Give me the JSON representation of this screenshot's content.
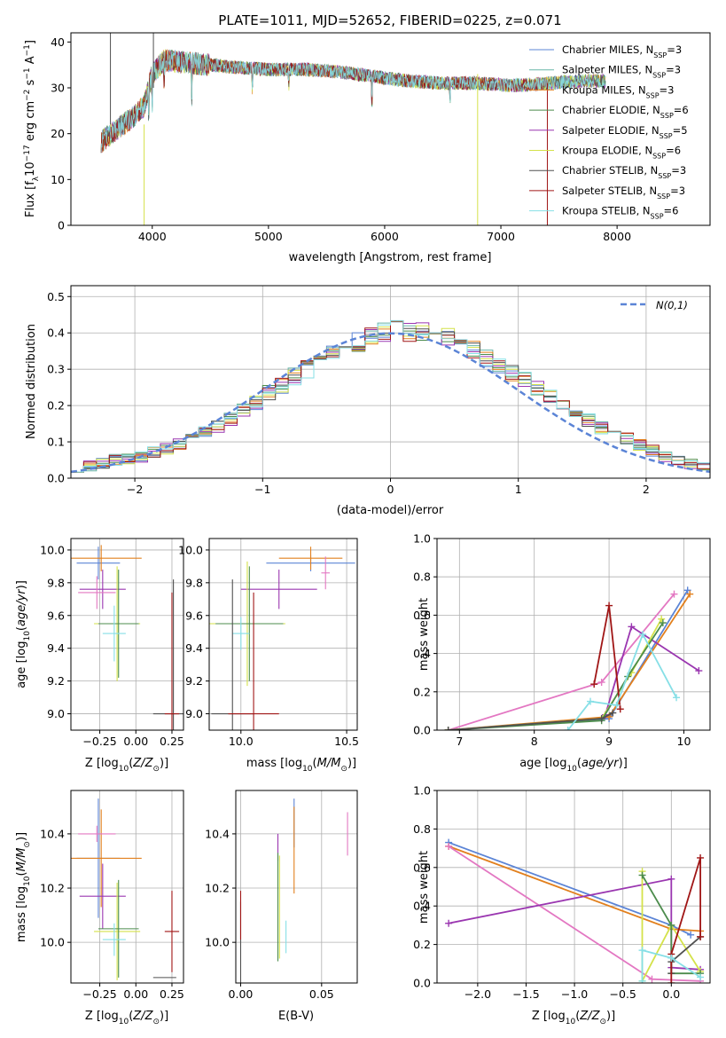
{
  "chart_data": [
    {
      "id": "spectrum",
      "type": "line",
      "title": "PLATE=1011, MJD=52652, FIBERID=0225, z=0.071",
      "xlabel": "wavelength [Angstrom, rest frame]",
      "ylabel": "Flux [fλ10⁻¹⁷ erg cm⁻² s⁻¹ A⁻¹]",
      "xlim": [
        3300,
        8800
      ],
      "ylim": [
        0,
        42
      ],
      "xticks": [
        4000,
        5000,
        6000,
        7000,
        8000
      ],
      "yticks": [
        0,
        10,
        20,
        30,
        40
      ],
      "legend_position": "top-right",
      "continuum": {
        "x": [
          3550,
          3700,
          3850,
          3930,
          4000,
          4100,
          4300,
          4500,
          4700,
          5000,
          5300,
          5600,
          5900,
          6200,
          6500,
          6800,
          7100,
          7400,
          7700,
          7900
        ],
        "y": [
          18,
          21,
          24,
          26,
          33,
          36,
          35.5,
          35,
          34.5,
          34,
          34,
          33.5,
          32.5,
          31.5,
          31,
          31,
          30.5,
          31,
          31.5,
          31.5
        ]
      },
      "series": [
        {
          "name": "Chabrier MILES, N_SSP=3",
          "legend": "Chabrier MILES, N",
          "sub": "SSP",
          "suffix": "=3",
          "color": "#5b84d6"
        },
        {
          "name": "Salpeter MILES, N_SSP=3",
          "legend": "Salpeter MILES, N",
          "sub": "SSP",
          "suffix": "=3",
          "color": "#68b5a8"
        },
        {
          "name": "Kroupa MILES, N_SSP=3",
          "legend": "Kroupa MILES, N",
          "sub": "SSP",
          "suffix": "=3",
          "color": "#e2801e"
        },
        {
          "name": "Chabrier ELODIE, N_SSP=6",
          "legend": "Chabrier ELODIE, N",
          "sub": "SSP",
          "suffix": "=6",
          "color": "#4c8c4c"
        },
        {
          "name": "Salpeter ELODIE, N_SSP=5",
          "legend": "Salpeter ELODIE, N",
          "sub": "SSP",
          "suffix": "=5",
          "color": "#9a36b0"
        },
        {
          "name": "Kroupa ELODIE, N_SSP=6",
          "legend": "Kroupa ELODIE, N",
          "sub": "SSP",
          "suffix": "=6",
          "color": "#d4e24a"
        },
        {
          "name": "Chabrier STELIB, N_SSP=3",
          "legend": "Chabrier STELIB, N",
          "sub": "SSP",
          "suffix": "=3",
          "color": "#505050"
        },
        {
          "name": "Salpeter STELIB, N_SSP=3",
          "legend": "Salpeter STELIB, N",
          "sub": "SSP",
          "suffix": "=3",
          "color": "#a01616"
        },
        {
          "name": "Kroupa STELIB, N_SSP=6",
          "legend": "Kroupa STELIB, N",
          "sub": "SSP",
          "suffix": "=6",
          "color": "#86dfe6"
        }
      ],
      "vertical_spikes": [
        {
          "x": 3930,
          "y0": 0,
          "y1": 22,
          "color": "#d4e24a"
        },
        {
          "x": 6800,
          "y0": 0,
          "y1": 33,
          "color": "#d4e24a"
        },
        {
          "x": 7400,
          "y0": 0,
          "y1": 31,
          "color": "#a01616"
        },
        {
          "x": 3640,
          "y0": 42,
          "y1": 22,
          "color": "#505050"
        },
        {
          "x": 4010,
          "y0": 42,
          "y1": 30,
          "color": "#505050"
        }
      ]
    },
    {
      "id": "residuals",
      "type": "histogram",
      "xlabel": "(data-model)/error",
      "ylabel": "Normed distribution",
      "xlim": [
        -2.5,
        2.5
      ],
      "ylim": [
        0,
        0.53
      ],
      "xticks": [
        -2,
        -1,
        0,
        1,
        2
      ],
      "yticks": [
        0,
        0.1,
        0.2,
        0.3,
        0.4,
        0.5
      ],
      "bin_width": 0.1,
      "bin_start": -2.5,
      "gaussian_label": "N(0,1)",
      "gaussian_color": "#5b84d6",
      "mean_profile": [
        0.03,
        0.035,
        0.04,
        0.05,
        0.055,
        0.06,
        0.07,
        0.08,
        0.095,
        0.11,
        0.13,
        0.145,
        0.16,
        0.185,
        0.21,
        0.235,
        0.255,
        0.28,
        0.3,
        0.32,
        0.34,
        0.36,
        0.375,
        0.39,
        0.4,
        0.41,
        0.405,
        0.4,
        0.395,
        0.385,
        0.37,
        0.355,
        0.33,
        0.31,
        0.29,
        0.27,
        0.25,
        0.225,
        0.2,
        0.18,
        0.16,
        0.14,
        0.125,
        0.11,
        0.09,
        0.075,
        0.06,
        0.05,
        0.04,
        0.03
      ]
    },
    {
      "id": "age-vs-Z",
      "type": "errorbar",
      "xlabel": "Z [log10(Z/Z⊙)]",
      "ylabel": "age [log10(age/yr)]",
      "xlim": [
        -0.45,
        0.33
      ],
      "ylim": [
        8.9,
        10.07
      ],
      "xticks": [
        -0.25,
        0,
        0.25
      ],
      "xticklabels": [
        "−0.25",
        "0.00",
        "0.25"
      ],
      "yticks": [
        9.0,
        9.2,
        9.4,
        9.6,
        9.8,
        10.0
      ],
      "points": [
        {
          "x": -0.26,
          "xerr": 0.15,
          "y": 9.92,
          "yerr": 0.1,
          "color": "#5b84d6"
        },
        {
          "x": -0.24,
          "xerr": 0.28,
          "y": 9.95,
          "yerr": 0.08,
          "color": "#e2801e"
        },
        {
          "x": -0.23,
          "xerr": 0.16,
          "y": 9.76,
          "yerr": 0.12,
          "color": "#9a36b0"
        },
        {
          "x": -0.27,
          "xerr": 0.13,
          "y": 9.74,
          "yerr": 0.1,
          "color": "#e377c2"
        },
        {
          "x": -0.13,
          "xerr": 0.16,
          "y": 9.55,
          "yerr": 0.35,
          "color": "#d4e24a"
        },
        {
          "x": -0.12,
          "xerr": 0.14,
          "y": 9.55,
          "yerr": 0.33,
          "color": "#4c8c4c"
        },
        {
          "x": -0.15,
          "xerr": 0.08,
          "y": 9.49,
          "yerr": 0.17,
          "color": "#86dfe6"
        },
        {
          "x": 0.26,
          "xerr": 0.14,
          "y": 9.0,
          "yerr": 0.82,
          "color": "#505050"
        },
        {
          "x": 0.25,
          "xerr": 0.05,
          "y": 9.0,
          "yerr": 0.74,
          "color": "#a01616"
        }
      ]
    },
    {
      "id": "age-vs-mass",
      "type": "errorbar",
      "xlabel": "mass [log10(M/M⊙)]",
      "ylabel": "",
      "xlim": [
        9.85,
        10.55
      ],
      "ylim": [
        8.9,
        10.07
      ],
      "xticks": [
        10.0,
        10.5
      ],
      "yticks": [
        9.0,
        9.2,
        9.4,
        9.6,
        9.8,
        10.0
      ],
      "points": [
        {
          "x": 10.33,
          "xerr": 0.21,
          "y": 9.92,
          "yerr": 0.05,
          "color": "#5b84d6"
        },
        {
          "x": 10.33,
          "xerr": 0.15,
          "y": 9.95,
          "yerr": 0.07,
          "color": "#e2801e"
        },
        {
          "x": 10.18,
          "xerr": 0.18,
          "y": 9.76,
          "yerr": 0.12,
          "color": "#9a36b0"
        },
        {
          "x": 10.4,
          "xerr": 0.02,
          "y": 9.86,
          "yerr": 0.1,
          "color": "#e377c2"
        },
        {
          "x": 10.03,
          "xerr": 0.18,
          "y": 9.55,
          "yerr": 0.38,
          "color": "#d4e24a"
        },
        {
          "x": 10.04,
          "xerr": 0.16,
          "y": 9.55,
          "yerr": 0.35,
          "color": "#4c8c4c"
        },
        {
          "x": 10.0,
          "xerr": 0.04,
          "y": 9.49,
          "yerr": 0.1,
          "color": "#86dfe6"
        },
        {
          "x": 9.96,
          "xerr": 0.1,
          "y": 9.0,
          "yerr": 0.82,
          "color": "#505050"
        },
        {
          "x": 10.06,
          "xerr": 0.12,
          "y": 9.0,
          "yerr": 0.74,
          "color": "#a01616"
        }
      ]
    },
    {
      "id": "massweight-vs-age",
      "type": "line",
      "xlabel": "age [log10(age/yr)]",
      "ylabel": "mass weight",
      "xlim": [
        6.7,
        10.35
      ],
      "ylim": [
        0,
        1.0
      ],
      "xticks": [
        7,
        8,
        9,
        10
      ],
      "yticks": [
        0,
        0.2,
        0.4,
        0.6,
        0.8,
        1.0
      ],
      "series": [
        {
          "color": "#5b84d6",
          "x": [
            6.85,
            9.0,
            10.05
          ],
          "y": [
            0.0,
            0.06,
            0.73
          ]
        },
        {
          "color": "#e2801e",
          "x": [
            6.85,
            9.0,
            10.08
          ],
          "y": [
            0.0,
            0.07,
            0.71
          ]
        },
        {
          "color": "#e377c2",
          "x": [
            6.85,
            8.9,
            9.87
          ],
          "y": [
            0.0,
            0.25,
            0.71
          ]
        },
        {
          "color": "#9a36b0",
          "x": [
            8.95,
            9.3,
            10.2
          ],
          "y": [
            0.08,
            0.54,
            0.31
          ]
        },
        {
          "color": "#d4e24a",
          "x": [
            6.85,
            8.9,
            9.3,
            9.7
          ],
          "y": [
            0.0,
            0.06,
            0.3,
            0.58
          ]
        },
        {
          "color": "#4c8c4c",
          "x": [
            6.85,
            8.9,
            9.25,
            9.72
          ],
          "y": [
            0.0,
            0.05,
            0.28,
            0.56
          ]
        },
        {
          "color": "#505050",
          "x": [
            6.85,
            8.9,
            9.05
          ],
          "y": [
            0.0,
            0.06,
            0.09
          ]
        },
        {
          "color": "#a01616",
          "x": [
            8.8,
            9.0,
            9.15
          ],
          "y": [
            0.24,
            0.65,
            0.11
          ]
        },
        {
          "color": "#86dfe6",
          "x": [
            8.45,
            8.75,
            9.1,
            9.45,
            9.9
          ],
          "y": [
            0.0,
            0.15,
            0.13,
            0.5,
            0.17
          ]
        }
      ]
    },
    {
      "id": "mass-vs-Z",
      "type": "errorbar",
      "xlabel": "Z [log10(Z/Z⊙)]",
      "ylabel": "mass [log10(M/M⊙)]",
      "xlim": [
        -0.45,
        0.33
      ],
      "ylim": [
        9.85,
        10.56
      ],
      "xticks": [
        -0.25,
        0,
        0.25
      ],
      "xticklabels": [
        "−0.25",
        "0.00",
        "0.25"
      ],
      "yticks": [
        10.0,
        10.2,
        10.4
      ],
      "points": [
        {
          "x": -0.26,
          "xerr": 0.15,
          "y": 10.31,
          "yerr": 0.22,
          "color": "#5b84d6"
        },
        {
          "x": -0.24,
          "xerr": 0.28,
          "y": 10.31,
          "yerr": 0.18,
          "color": "#e2801e"
        },
        {
          "x": -0.23,
          "xerr": 0.16,
          "y": 10.17,
          "yerr": 0.12,
          "color": "#9a36b0"
        },
        {
          "x": -0.27,
          "xerr": 0.13,
          "y": 10.4,
          "yerr": 0.03,
          "color": "#e377c2"
        },
        {
          "x": -0.13,
          "xerr": 0.16,
          "y": 10.04,
          "yerr": 0.18,
          "color": "#d4e24a"
        },
        {
          "x": -0.12,
          "xerr": 0.14,
          "y": 10.05,
          "yerr": 0.18,
          "color": "#4c8c4c"
        },
        {
          "x": -0.15,
          "xerr": 0.08,
          "y": 10.01,
          "yerr": 0.06,
          "color": "#86dfe6"
        },
        {
          "x": 0.2,
          "xerr": 0.08,
          "y": 9.87,
          "yerr": 0.0,
          "color": "#505050"
        },
        {
          "x": 0.25,
          "xerr": 0.05,
          "y": 10.04,
          "yerr": 0.15,
          "color": "#a01616"
        }
      ]
    },
    {
      "id": "mass-vs-EBV",
      "type": "errorbar",
      "xlabel": "E(B-V)",
      "ylabel": "",
      "xlim": [
        -0.003,
        0.072
      ],
      "ylim": [
        9.85,
        10.56
      ],
      "xticks": [
        0.0,
        0.05
      ],
      "xticklabels": [
        "0.00",
        "0.05"
      ],
      "yticks": [
        10.0,
        10.2,
        10.4
      ],
      "points": [
        {
          "x": 0.033,
          "xerr": 0,
          "y": 10.44,
          "yerr": 0.09,
          "color": "#5b84d6"
        },
        {
          "x": 0.033,
          "xerr": 0,
          "y": 10.34,
          "yerr": 0.16,
          "color": "#e2801e"
        },
        {
          "x": 0.023,
          "xerr": 0,
          "y": 10.35,
          "yerr": 0.05,
          "color": "#9a36b0"
        },
        {
          "x": 0.066,
          "xerr": 0,
          "y": 10.4,
          "yerr": 0.08,
          "color": "#e377c2"
        },
        {
          "x": 0.024,
          "xerr": 0,
          "y": 10.13,
          "yerr": 0.19,
          "color": "#d4e24a"
        },
        {
          "x": 0.023,
          "xerr": 0,
          "y": 10.13,
          "yerr": 0.2,
          "color": "#4c8c4c"
        },
        {
          "x": 0.028,
          "xerr": 0,
          "y": 10.02,
          "yerr": 0.06,
          "color": "#86dfe6"
        },
        {
          "x": 0.0,
          "xerr": 0,
          "y": 10.0,
          "yerr": 0.15,
          "color": "#505050"
        },
        {
          "x": 0.0,
          "xerr": 0,
          "y": 10.1,
          "yerr": 0.09,
          "color": "#a01616"
        }
      ]
    },
    {
      "id": "massweight-vs-Z",
      "type": "line",
      "xlabel": "Z [log10(Z/Z⊙)]",
      "ylabel": "mass weight",
      "xlim": [
        -2.42,
        0.4
      ],
      "ylim": [
        0,
        1.0
      ],
      "xticks": [
        -2.0,
        -1.5,
        -1.0,
        -0.5,
        0.0
      ],
      "xticklabels": [
        "−2.0",
        "−1.5",
        "−1.0",
        "−0.5",
        "0.0"
      ],
      "yticks": [
        0,
        0.2,
        0.4,
        0.6,
        0.8,
        1.0
      ],
      "series": [
        {
          "color": "#5b84d6",
          "x": [
            -2.3,
            0.0,
            0.2
          ],
          "y": [
            0.73,
            0.3,
            0.25
          ]
        },
        {
          "color": "#e2801e",
          "x": [
            -2.3,
            0.0,
            0.3
          ],
          "y": [
            0.71,
            0.28,
            0.27
          ]
        },
        {
          "color": "#e377c2",
          "x": [
            -2.3,
            -0.2,
            0.3
          ],
          "y": [
            0.71,
            0.02,
            0.01
          ]
        },
        {
          "color": "#9a36b0",
          "x": [
            -2.3,
            0.0,
            0.0,
            0.3
          ],
          "y": [
            0.31,
            0.54,
            0.08,
            0.07
          ]
        },
        {
          "color": "#d4e24a",
          "x": [
            -0.3,
            -0.3,
            0.0,
            0.3
          ],
          "y": [
            0.58,
            0.01,
            0.3,
            0.06
          ]
        },
        {
          "color": "#4c8c4c",
          "x": [
            -0.3,
            0.0,
            0.0,
            0.3
          ],
          "y": [
            0.56,
            0.3,
            0.05,
            0.05
          ]
        },
        {
          "color": "#505050",
          "x": [
            0.0,
            0.0,
            0.3
          ],
          "y": [
            0.05,
            0.11,
            0.24
          ]
        },
        {
          "color": "#a01616",
          "x": [
            0.0,
            0.0,
            0.3,
            0.3
          ],
          "y": [
            0.0,
            0.15,
            0.65,
            0.24
          ]
        },
        {
          "color": "#86dfe6",
          "x": [
            -0.3,
            -0.3,
            0.0,
            0.3
          ],
          "y": [
            0.01,
            0.17,
            0.13,
            0.03
          ]
        }
      ]
    }
  ]
}
